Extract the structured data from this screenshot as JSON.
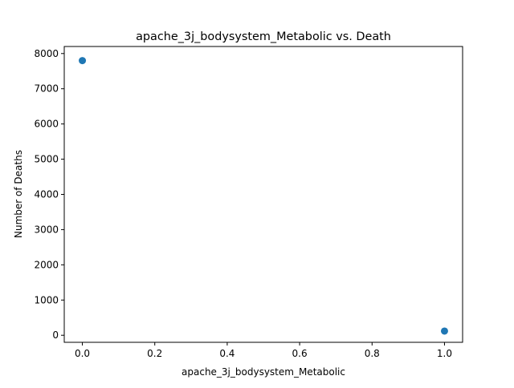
{
  "chart_data": {
    "type": "scatter",
    "title": "apache_3j_bodysystem_Metabolic vs. Death",
    "xlabel": "apache_3j_bodysystem_Metabolic",
    "ylabel": "Number of Deaths",
    "xlim": [
      -0.05,
      1.05
    ],
    "ylim": [
      -200,
      8200
    ],
    "xticks": [
      0.0,
      0.2,
      0.4,
      0.6,
      0.8,
      1.0
    ],
    "xtick_labels": [
      "0.0",
      "0.2",
      "0.4",
      "0.6",
      "0.8",
      "1.0"
    ],
    "yticks": [
      0,
      1000,
      2000,
      3000,
      4000,
      5000,
      6000,
      7000,
      8000
    ],
    "ytick_labels": [
      "0",
      "1000",
      "2000",
      "3000",
      "4000",
      "5000",
      "6000",
      "7000",
      "8000"
    ],
    "grid": false,
    "series": [
      {
        "x": [
          0,
          1
        ],
        "y": [
          7800,
          120
        ],
        "color": "#1f77b4"
      }
    ]
  }
}
